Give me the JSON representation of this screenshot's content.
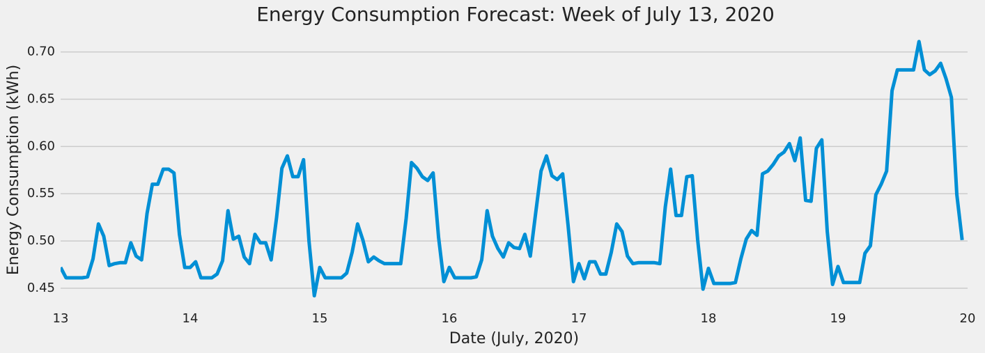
{
  "chart_data": {
    "type": "line",
    "title": "Energy Consumption Forecast: Week of July 13, 2020",
    "x_label": "Date (July, 2020)",
    "y_label": "Energy Consumption (kWh)",
    "x": [
      13,
      13.042,
      13.083,
      13.125,
      13.167,
      13.208,
      13.25,
      13.292,
      13.333,
      13.375,
      13.417,
      13.458,
      13.5,
      13.542,
      13.583,
      13.625,
      13.667,
      13.708,
      13.75,
      13.792,
      13.833,
      13.875,
      13.917,
      13.958,
      14,
      14.042,
      14.083,
      14.125,
      14.167,
      14.208,
      14.25,
      14.292,
      14.333,
      14.375,
      14.417,
      14.458,
      14.5,
      14.542,
      14.583,
      14.625,
      14.667,
      14.708,
      14.75,
      14.792,
      14.833,
      14.875,
      14.917,
      14.958,
      15,
      15.042,
      15.083,
      15.125,
      15.167,
      15.208,
      15.25,
      15.292,
      15.333,
      15.375,
      15.417,
      15.458,
      15.5,
      15.542,
      15.583,
      15.625,
      15.667,
      15.708,
      15.75,
      15.792,
      15.833,
      15.875,
      15.917,
      15.958,
      16,
      16.042,
      16.083,
      16.125,
      16.167,
      16.208,
      16.25,
      16.292,
      16.333,
      16.375,
      16.417,
      16.458,
      16.5,
      16.542,
      16.583,
      16.625,
      16.667,
      16.708,
      16.75,
      16.792,
      16.833,
      16.875,
      16.917,
      16.958,
      17,
      17.042,
      17.083,
      17.125,
      17.167,
      17.208,
      17.25,
      17.292,
      17.333,
      17.375,
      17.417,
      17.458,
      17.5,
      17.542,
      17.583,
      17.625,
      17.667,
      17.708,
      17.75,
      17.792,
      17.833,
      17.875,
      17.917,
      17.958,
      18,
      18.042,
      18.083,
      18.125,
      18.167,
      18.208,
      18.25,
      18.292,
      18.333,
      18.375,
      18.417,
      18.458,
      18.5,
      18.542,
      18.583,
      18.625,
      18.667,
      18.708,
      18.75,
      18.792,
      18.833,
      18.875,
      18.917,
      18.958,
      19,
      19.042,
      19.083,
      19.125,
      19.167,
      19.208,
      19.25,
      19.292,
      19.333,
      19.375,
      19.417,
      19.458,
      19.5,
      19.542,
      19.583,
      19.625,
      19.667,
      19.708,
      19.75,
      19.792,
      19.833,
      19.875,
      19.917,
      19.958
    ],
    "series": [
      {
        "name": "Forecast",
        "color": "#008fd5",
        "values": [
          0.472,
          0.461,
          0.461,
          0.461,
          0.461,
          0.462,
          0.481,
          0.518,
          0.505,
          0.474,
          0.476,
          0.477,
          0.477,
          0.498,
          0.484,
          0.48,
          0.529,
          0.56,
          0.56,
          0.576,
          0.576,
          0.572,
          0.507,
          0.472,
          0.472,
          0.478,
          0.461,
          0.461,
          0.461,
          0.465,
          0.479,
          0.532,
          0.502,
          0.505,
          0.483,
          0.476,
          0.507,
          0.498,
          0.498,
          0.48,
          0.525,
          0.577,
          0.59,
          0.568,
          0.568,
          0.586,
          0.5,
          0.442,
          0.472,
          0.461,
          0.461,
          0.461,
          0.461,
          0.466,
          0.488,
          0.518,
          0.501,
          0.478,
          0.483,
          0.479,
          0.476,
          0.476,
          0.476,
          0.476,
          0.524,
          0.583,
          0.577,
          0.568,
          0.564,
          0.572,
          0.504,
          0.457,
          0.472,
          0.461,
          0.461,
          0.461,
          0.461,
          0.462,
          0.48,
          0.532,
          0.505,
          0.492,
          0.483,
          0.498,
          0.493,
          0.492,
          0.507,
          0.484,
          0.53,
          0.574,
          0.59,
          0.569,
          0.565,
          0.571,
          0.516,
          0.457,
          0.476,
          0.46,
          0.478,
          0.478,
          0.465,
          0.465,
          0.488,
          0.518,
          0.51,
          0.484,
          0.476,
          0.477,
          0.477,
          0.477,
          0.477,
          0.476,
          0.536,
          0.576,
          0.527,
          0.527,
          0.568,
          0.569,
          0.501,
          0.449,
          0.471,
          0.455,
          0.455,
          0.455,
          0.455,
          0.456,
          0.481,
          0.502,
          0.511,
          0.506,
          0.571,
          0.574,
          0.581,
          0.59,
          0.594,
          0.603,
          0.585,
          0.609,
          0.543,
          0.542,
          0.598,
          0.607,
          0.51,
          0.454,
          0.473,
          0.456,
          0.456,
          0.456,
          0.456,
          0.487,
          0.495,
          0.549,
          0.56,
          0.574,
          0.659,
          0.681,
          0.681,
          0.681,
          0.681,
          0.711,
          0.681,
          0.676,
          0.68,
          0.688,
          0.672,
          0.652,
          0.549,
          0.501
        ]
      }
    ],
    "xlim": [
      13,
      20
    ],
    "xticks": [
      13,
      14,
      15,
      16,
      17,
      18,
      19,
      20
    ],
    "ylim": [
      0.4367,
      0.727
    ],
    "yticks": [
      0.45,
      {
        "value": 0.5,
        "label": "0.50"
      },
      0.55,
      {
        "value": 0.6,
        "label": "0.60"
      },
      0.65,
      {
        "value": 0.7,
        "label": "0.70"
      }
    ],
    "grid": true
  }
}
